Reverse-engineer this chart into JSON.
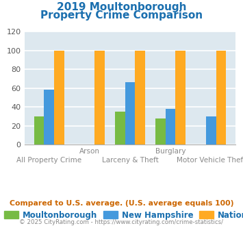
{
  "title_line1": "2019 Moultonborough",
  "title_line2": "Property Crime Comparison",
  "title_color": "#1a6faf",
  "categories": [
    "All Property Crime",
    "Arson",
    "Larceny & Theft",
    "Burglary",
    "Motor Vehicle Theft"
  ],
  "cat_labels_top": [
    "",
    "Arson",
    "",
    "Burglary",
    ""
  ],
  "cat_labels_bottom": [
    "All Property Crime",
    "",
    "Larceny & Theft",
    "",
    "Motor Vehicle Theft"
  ],
  "moultonborough": [
    30,
    0,
    35,
    28,
    0
  ],
  "new_hampshire": [
    58,
    0,
    66,
    38,
    30
  ],
  "national": [
    100,
    100,
    100,
    100,
    100
  ],
  "bar_colors": {
    "moultonborough": "#77bb44",
    "new_hampshire": "#4499dd",
    "national": "#ffaa22"
  },
  "ylim": [
    0,
    120
  ],
  "yticks": [
    0,
    20,
    40,
    60,
    80,
    100,
    120
  ],
  "legend_labels": [
    "Moultonborough",
    "New Hampshire",
    "National"
  ],
  "footnote1": "Compared to U.S. average. (U.S. average equals 100)",
  "footnote2": "© 2025 CityRating.com - https://www.cityrating.com/crime-statistics/",
  "footnote1_color": "#cc6600",
  "footnote2_color": "#888888",
  "bg_color": "#dde8ef",
  "grid_color": "#ffffff"
}
